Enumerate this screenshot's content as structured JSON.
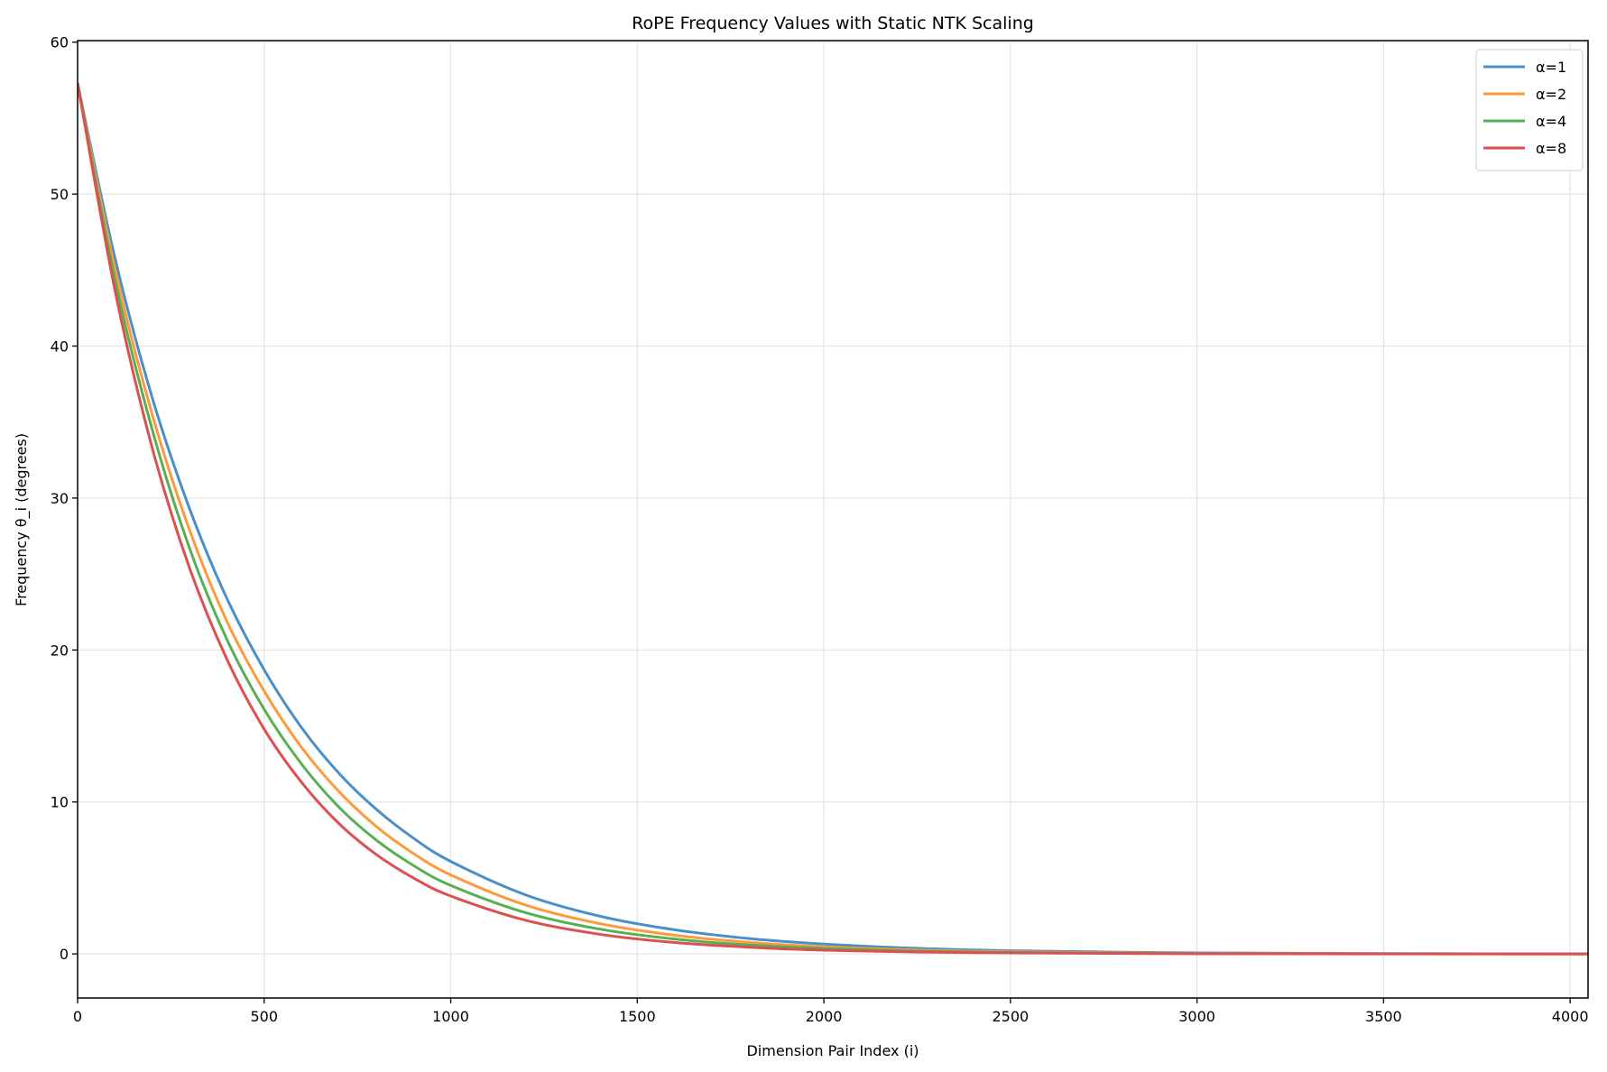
{
  "chart_data": {
    "type": "line",
    "title": "RoPE Frequency Values with Static NTK Scaling",
    "xlabel": "Dimension Pair Index (i)",
    "ylabel": "Frequency θ_i (degrees)",
    "xlim": [
      0,
      4048
    ],
    "ylim": [
      -2.9,
      60.1
    ],
    "xticks": [
      0,
      500,
      1000,
      1500,
      2000,
      2500,
      3000,
      3500,
      4000
    ],
    "xtick_labels": [
      "0",
      "500",
      "1000",
      "1500",
      "2000",
      "2500",
      "3000",
      "3500",
      "4000"
    ],
    "yticks": [
      0,
      10,
      20,
      30,
      40,
      50,
      60
    ],
    "ytick_labels": [
      "0",
      "10",
      "20",
      "30",
      "40",
      "50",
      "60"
    ],
    "grid": true,
    "legend_position": "upper right",
    "x": [
      0,
      100,
      200,
      300,
      400,
      500,
      600,
      700,
      800,
      900,
      1000,
      1200,
      1400,
      1600,
      1800,
      2000,
      2250,
      2500,
      3000,
      3500,
      4000,
      4048
    ],
    "series": [
      {
        "name": "α=1",
        "color": "#4a8fc6",
        "values": [
          57.3,
          45.8,
          36.6,
          29.3,
          23.4,
          18.7,
          14.9,
          11.9,
          9.53,
          7.62,
          6.09,
          3.89,
          2.48,
          1.59,
          1.01,
          0.65,
          0.37,
          0.21,
          0.069,
          0.023,
          0.007,
          0.006
        ]
      },
      {
        "name": "α=2",
        "color": "#ff9a3c",
        "values": [
          57.3,
          45.1,
          35.5,
          27.9,
          21.9,
          17.3,
          13.6,
          10.7,
          8.4,
          6.61,
          5.2,
          3.22,
          1.99,
          1.23,
          0.76,
          0.47,
          0.26,
          0.14,
          0.043,
          0.013,
          0.004,
          0.003
        ]
      },
      {
        "name": "α=4",
        "color": "#55b055",
        "values": [
          57.3,
          44.4,
          34.5,
          26.7,
          20.7,
          16.1,
          12.5,
          9.67,
          7.5,
          5.82,
          4.51,
          2.72,
          1.63,
          0.98,
          0.59,
          0.36,
          0.19,
          0.1,
          0.028,
          0.008,
          0.002,
          0.002
        ]
      },
      {
        "name": "α=8",
        "color": "#dd4f50",
        "values": [
          57.3,
          43.7,
          33.3,
          25.4,
          19.4,
          14.8,
          11.3,
          8.59,
          6.55,
          5.0,
          3.81,
          2.22,
          1.29,
          0.75,
          0.44,
          0.25,
          0.13,
          0.066,
          0.017,
          0.004,
          0.001,
          0.001
        ]
      }
    ]
  }
}
